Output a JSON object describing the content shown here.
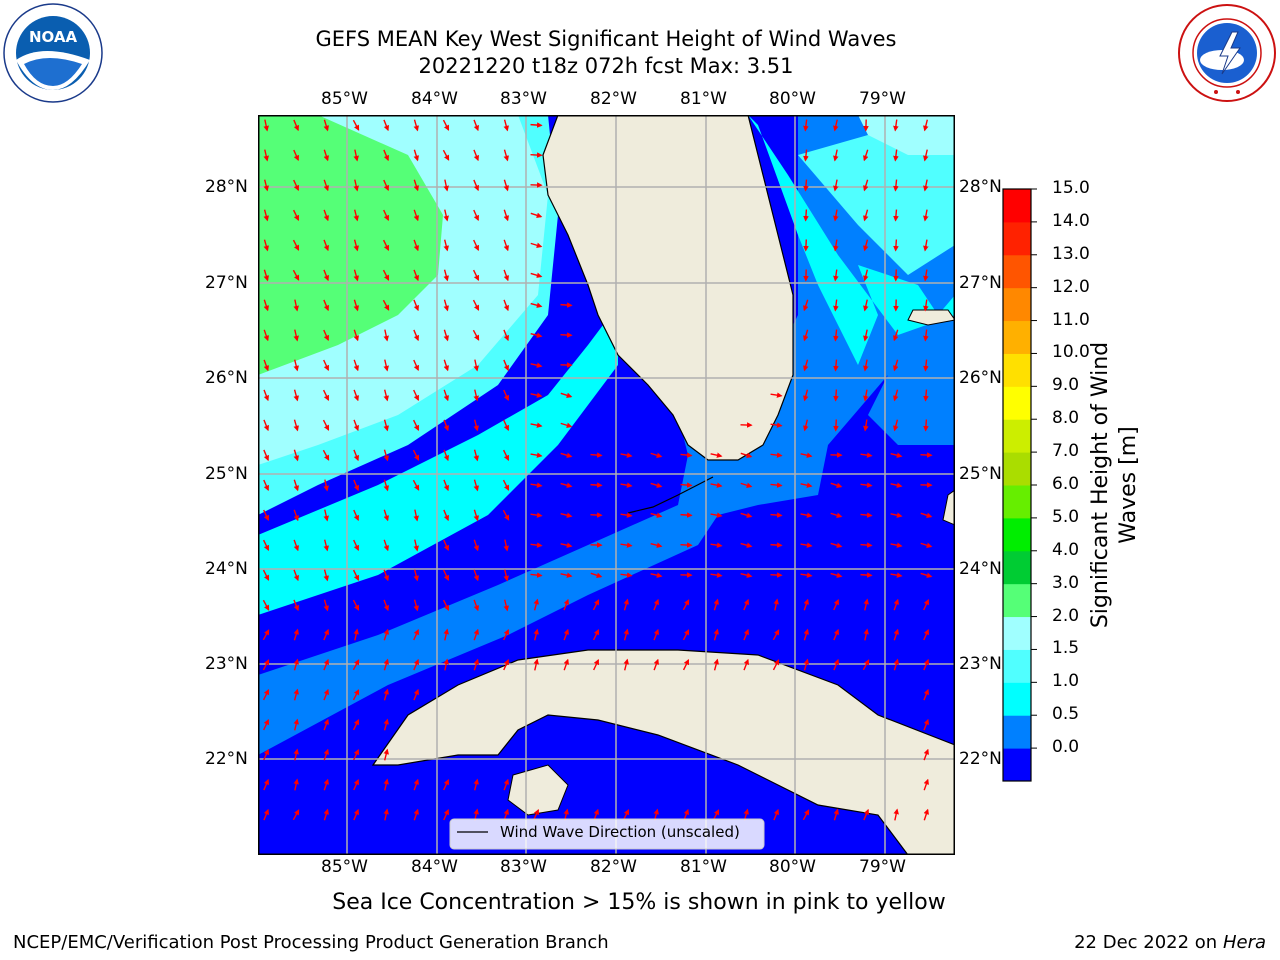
{
  "title": {
    "line1": "GEFS MEAN Key West Significant Height of Wind Waves",
    "line2": "20221220 t18z 072h fcst   Max: 3.51"
  },
  "logos": {
    "left": {
      "icon": "noaa-logo-icon",
      "text": "NOAA",
      "ring_text": "NATIONAL OCEANIC AND ATMOSPHERIC ADMINISTRATION · U.S. DEPARTMENT OF COMMERCE"
    },
    "right": {
      "icon": "nws-logo-icon",
      "ring_text": "NATIONAL WEATHER SERVICE"
    }
  },
  "map": {
    "lon_labels": [
      "85°W",
      "84°W",
      "83°W",
      "82°W",
      "81°W",
      "80°W",
      "79°W"
    ],
    "lat_labels": [
      "28°N",
      "27°N",
      "26°N",
      "25°N",
      "24°N",
      "23°N",
      "22°N"
    ],
    "legend_label": "Wind Wave Direction (unscaled)",
    "colors": {
      "land": "#efecdc",
      "arrow": "#ff0000",
      "grid": "#b0b0b0"
    }
  },
  "colorbar": {
    "label_line1": "Significant Height of Wind",
    "label_line2": "Waves [m]",
    "ticks": [
      "15.0",
      "14.0",
      "13.0",
      "12.0",
      "11.0",
      "10.0",
      "9.0",
      "8.0",
      "7.0",
      "6.0",
      "5.0",
      "4.0",
      "3.0",
      "2.0",
      "1.5",
      "1.0",
      "0.5",
      "0.0"
    ],
    "colors_bottom_to_top": [
      "#0000ff",
      "#0080ff",
      "#00ffff",
      "#50ffff",
      "#a0ffff",
      "#55ff77",
      "#00cc33",
      "#00ee00",
      "#66ee00",
      "#aadd00",
      "#ccee00",
      "#ffff00",
      "#ffe000",
      "#ffb000",
      "#ff8800",
      "#ff5500",
      "#ff2200",
      "#ff0000"
    ]
  },
  "note": "Sea Ice Concentration > 15% is shown in pink to yellow",
  "footer": {
    "left": "NCEP/EMC/Verification Post Processing Product Generation Branch",
    "right_date": "22 Dec 2022 on",
    "right_host": "Hera"
  }
}
